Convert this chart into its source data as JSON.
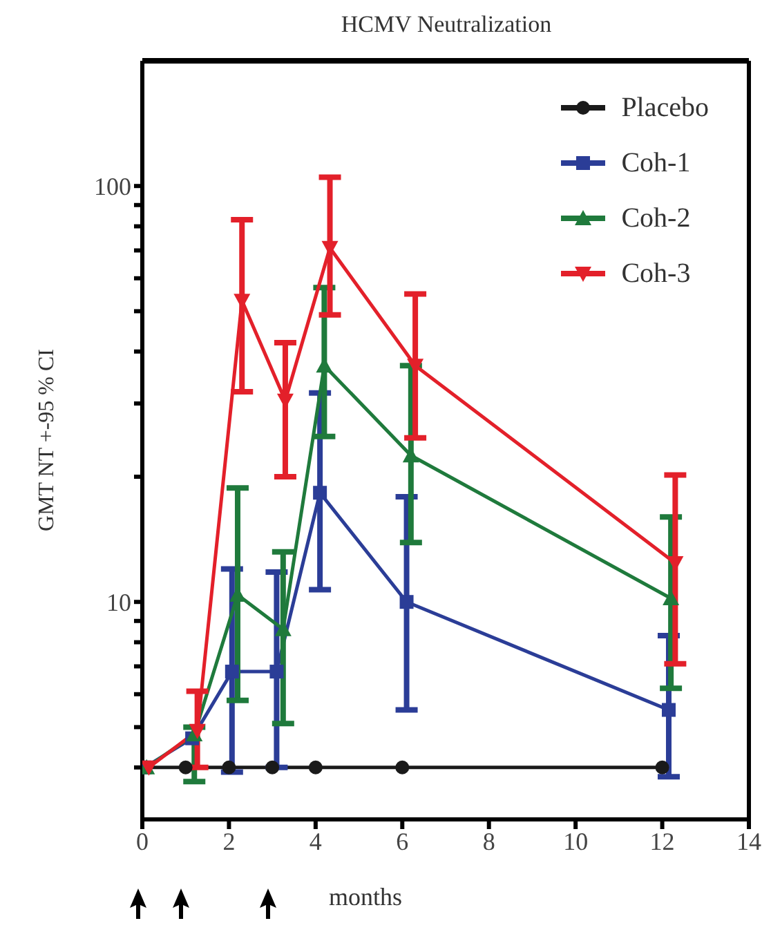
{
  "chart_data": {
    "type": "line",
    "title": "HCMV Neutralization",
    "xlabel": "months",
    "ylabel": "GMT NT +-95 % CI",
    "log": "y",
    "xlim": [
      0,
      14
    ],
    "xticks": [
      0,
      2,
      4,
      6,
      8,
      10,
      12,
      14
    ],
    "ylim": [
      3,
      200
    ],
    "yticks": [
      {
        "value": 4,
        "label": null
      },
      {
        "value": 5,
        "label": null
      },
      {
        "value": 6,
        "label": null
      },
      {
        "value": 7,
        "label": null
      },
      {
        "value": 8,
        "label": null
      },
      {
        "value": 9,
        "label": null
      },
      10,
      {
        "value": 20,
        "label": null
      },
      {
        "value": 30,
        "label": null
      },
      {
        "value": 40,
        "label": null
      },
      {
        "value": 50,
        "label": null
      },
      {
        "value": 60,
        "label": null
      },
      {
        "value": 70,
        "label": null
      },
      {
        "value": 80,
        "label": null
      },
      {
        "value": 90,
        "label": null
      },
      100
    ],
    "grid": false,
    "legend": "top right",
    "line_style": "solid",
    "series": [
      {
        "name": "Placebo",
        "color": "#1a1a1a",
        "marker": "circle",
        "x": [
          0,
          1,
          2,
          3,
          4,
          6,
          12
        ],
        "values": [
          4,
          4,
          4,
          4,
          4,
          4,
          4
        ]
      },
      {
        "name": "Coh-1",
        "color": "#2b3d97",
        "marker": "square",
        "x": [
          0.05,
          1.15,
          2.07,
          3.1,
          4.1,
          6.1,
          12.15
        ],
        "values": [
          4,
          4.7,
          6.8,
          6.8,
          18.3,
          10,
          5.5
        ],
        "errors": [
          null,
          null,
          [
            3.9,
            12
          ],
          [
            4,
            11.8
          ],
          [
            10.7,
            31.8
          ],
          [
            5.5,
            17.9
          ],
          [
            3.8,
            8.3
          ]
        ]
      },
      {
        "name": "Coh-2",
        "color": "#1f7a3c",
        "marker": "triangle",
        "x": [
          0.1,
          1.2,
          2.2,
          3.25,
          4.2,
          6.2,
          12.2
        ],
        "values": [
          4,
          4.8,
          10.4,
          8.6,
          37,
          22.5,
          10.2
        ],
        "errors": [
          null,
          [
            3.7,
            5
          ],
          [
            5.8,
            18.8
          ],
          [
            5.1,
            13.2
          ],
          [
            25,
            57
          ],
          [
            13.9,
            37
          ],
          [
            6.2,
            16
          ]
        ]
      },
      {
        "name": "Coh-3",
        "color": "#e3202a",
        "marker": "triangle-down",
        "x": [
          0.15,
          1.27,
          2.3,
          3.3,
          4.33,
          6.3,
          12.3
        ],
        "values": [
          4,
          4.9,
          53,
          30.5,
          71,
          37,
          12.4
        ],
        "errors": [
          null,
          [
            4,
            6.1
          ],
          [
            32,
            83
          ],
          [
            20,
            42
          ],
          [
            49,
            105
          ],
          [
            24.8,
            55
          ],
          [
            7.1,
            20.2
          ]
        ]
      }
    ]
  }
}
